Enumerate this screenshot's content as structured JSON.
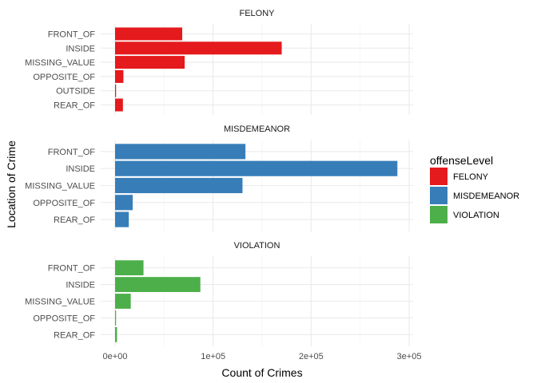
{
  "chart_data": {
    "type": "bar",
    "orientation": "horizontal",
    "faceted": true,
    "xlabel": "Count of Crimes",
    "ylabel": "Location of Crime",
    "xlim": [
      0,
      300000
    ],
    "xticks": [
      0,
      100000,
      200000,
      300000
    ],
    "xtick_labels": [
      "0e+00",
      "1e+05",
      "2e+05",
      "3e+05"
    ],
    "grid": true,
    "legend": {
      "title": "offenseLevel",
      "placement": "right",
      "entries": [
        "FELONY",
        "MISDEMEANOR",
        "VIOLATION"
      ]
    },
    "colors": {
      "FELONY": "#e41a1c",
      "MISDEMEANOR": "#377eb8",
      "VIOLATION": "#4daf4a"
    },
    "facets": [
      {
        "name": "FELONY",
        "categories": [
          "REAR_OF",
          "OUTSIDE",
          "OPPOSITE_OF",
          "MISSING_VALUE",
          "INSIDE",
          "FRONT_OF"
        ],
        "values": [
          8000,
          1000,
          8500,
          71000,
          170000,
          68500
        ]
      },
      {
        "name": "MISDEMEANOR",
        "categories": [
          "REAR_OF",
          "OPPOSITE_OF",
          "MISSING_VALUE",
          "INSIDE",
          "FRONT_OF"
        ],
        "values": [
          14000,
          18000,
          130000,
          288000,
          133000
        ]
      },
      {
        "name": "VIOLATION",
        "categories": [
          "REAR_OF",
          "OPPOSITE_OF",
          "MISSING_VALUE",
          "INSIDE",
          "FRONT_OF"
        ],
        "values": [
          2000,
          1000,
          16000,
          87000,
          29000
        ]
      }
    ]
  }
}
